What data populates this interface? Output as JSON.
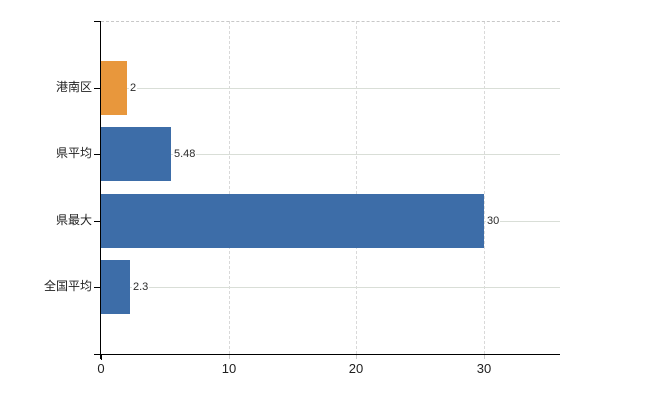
{
  "chart_data": {
    "type": "bar",
    "orientation": "horizontal",
    "title": "",
    "categories": [
      "港南区",
      "県平均",
      "県最大",
      "全国平均"
    ],
    "values": [
      2,
      5.48,
      30,
      2.3
    ],
    "value_labels": [
      "2",
      "5.48",
      "30",
      "2.3"
    ],
    "bar_colors": [
      "#e8973c",
      "#3d6da8",
      "#3d6da8",
      "#3d6da8"
    ],
    "x_ticks": [
      0,
      10,
      20,
      30
    ],
    "x_tick_labels": [
      "0",
      "10",
      "20",
      "30"
    ],
    "xlim": [
      0,
      36
    ],
    "grid": {
      "horizontal": true,
      "vertical": true,
      "top_border": "dashed"
    },
    "legend": "none",
    "colors": {
      "highlight_bar": "#e8973c",
      "default_bar": "#3d6da8",
      "axis": "#000000",
      "grid_horizontal": "#d9ded7",
      "grid_vertical": "#d9d9d9",
      "top_border": "#c8c8c8",
      "label_text": "#1f1f1f",
      "value_text": "#2b2b2b",
      "background": "#ffffff"
    }
  }
}
